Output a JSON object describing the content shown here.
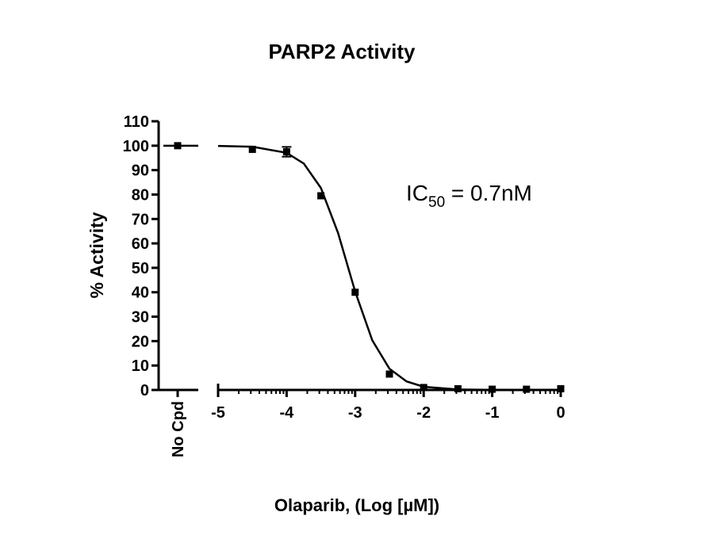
{
  "chart_data": {
    "type": "scatter",
    "title": "PARP2 Activity",
    "x_label": "Olaparib, (Log [µM])",
    "y_label": "% Activity",
    "annotation": {
      "text": "IC",
      "subscript": "50",
      "rest": " = 0.7nM"
    },
    "control": {
      "category": "No Cpd",
      "value": 100
    },
    "x": [
      -4.5,
      -4,
      -3.5,
      -3,
      -2.5,
      -2,
      -1.5,
      -1,
      -0.5,
      0
    ],
    "values": [
      98.5,
      97.5,
      79.5,
      40,
      6.5,
      1,
      0.5,
      0.3,
      0.3,
      0.5
    ],
    "errors": [
      null,
      2,
      null,
      null,
      null,
      null,
      null,
      null,
      null,
      null
    ],
    "fit": {
      "x": [
        -5,
        -4.5,
        -4,
        -3.75,
        -3.5,
        -3.25,
        -3,
        -2.75,
        -2.5,
        -2.25,
        -2,
        -1.5,
        -1,
        -0.5,
        0
      ],
      "values": [
        99.9,
        99.6,
        97.1,
        92.7,
        82.7,
        64.3,
        40.3,
        20.3,
        8.7,
        3.5,
        1.3,
        0.19,
        0.03,
        0,
        0
      ]
    },
    "color": "#000000",
    "xlim": [
      -5,
      0
    ],
    "xticks": [
      -5,
      -4,
      -3,
      -2,
      -1,
      0
    ],
    "ylim": [
      0,
      110
    ],
    "yticks": [
      0,
      10,
      20,
      30,
      40,
      50,
      60,
      70,
      80,
      90,
      100,
      110
    ]
  }
}
